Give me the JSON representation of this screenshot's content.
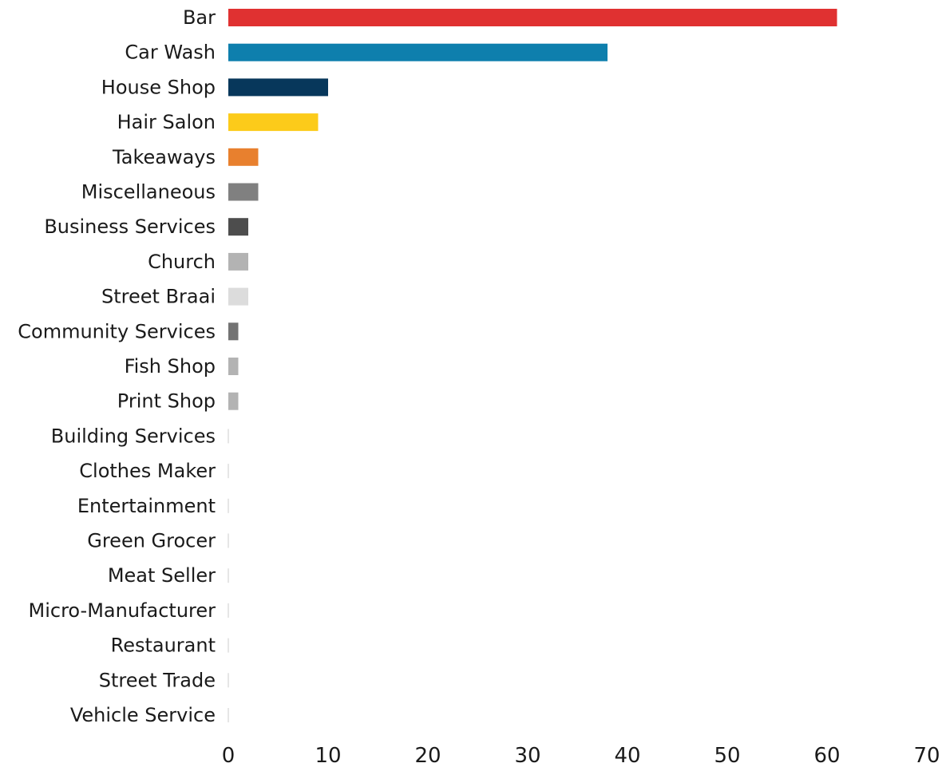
{
  "chart_data": {
    "type": "bar",
    "orientation": "horizontal",
    "title": "",
    "xlabel": "",
    "ylabel": "",
    "xlim": [
      0,
      70
    ],
    "x_ticks": [
      "0",
      "10",
      "20",
      "30",
      "40",
      "50",
      "60",
      "70"
    ],
    "x_tick_values": [
      0,
      10,
      20,
      30,
      40,
      50,
      60,
      70
    ],
    "grid": false,
    "legend": "none",
    "categories": [
      "Bar",
      "Car Wash",
      "House Shop",
      "Hair Salon",
      "Takeaways",
      "Miscellaneous",
      "Business Services",
      "Church",
      "Street Braai",
      "Community Services",
      "Fish Shop",
      "Print Shop",
      "Building Services",
      "Clothes Maker",
      "Entertainment",
      "Green Grocer",
      "Meat Seller",
      "Micro-Manufacturer",
      "Restaurant",
      "Street Trade",
      "Vehicle Service"
    ],
    "values": [
      61,
      38,
      10,
      9,
      3,
      3,
      2,
      2,
      2,
      1,
      1,
      1,
      0,
      0,
      0,
      0,
      0,
      0,
      0,
      0,
      0
    ],
    "colors": [
      "#e03131",
      "#0e7fad",
      "#07375b",
      "#fccb1a",
      "#e8802e",
      "#808080",
      "#4d4d4d",
      "#b3b3b3",
      "#dcdcdc",
      "#737373",
      "#b3b3b3",
      "#b3b3b3",
      "#cccccc",
      "#cccccc",
      "#cccccc",
      "#cccccc",
      "#cccccc",
      "#cccccc",
      "#cccccc",
      "#cccccc",
      "#cccccc"
    ]
  }
}
